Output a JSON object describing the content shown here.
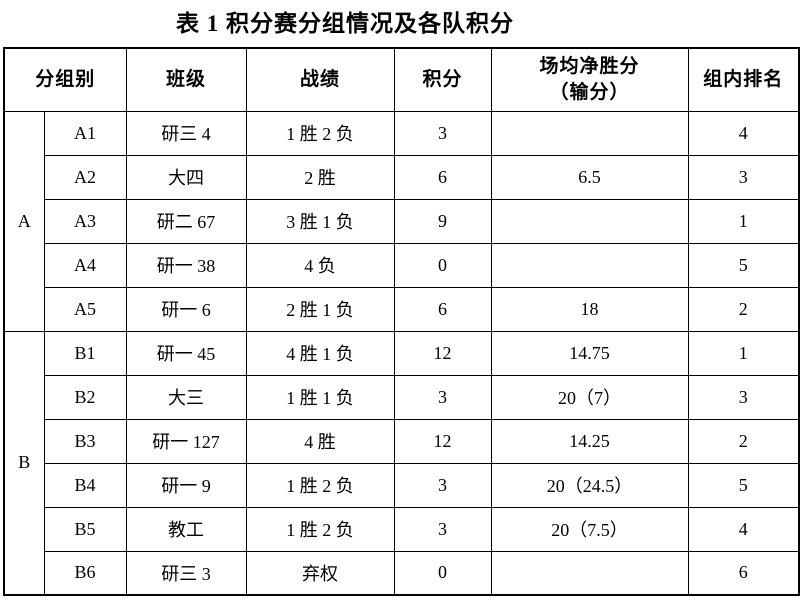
{
  "title": "表 1 积分赛分组情况及各队积分",
  "table": {
    "headers": {
      "group": "分组别",
      "class": "班级",
      "record": "战绩",
      "points": "积分",
      "margin_line1": "场均净胜分",
      "margin_line2": "（输分）",
      "rank": "组内排名"
    },
    "groups": [
      {
        "name": "A",
        "rows": [
          {
            "id": "A1",
            "class": "研三 4",
            "record": "1 胜 2 负",
            "points": "3",
            "margin": "",
            "rank": "4"
          },
          {
            "id": "A2",
            "class": "大四",
            "record": "2 胜",
            "points": "6",
            "margin": "6.5",
            "rank": "3"
          },
          {
            "id": "A3",
            "class": "研二 67",
            "record": "3 胜 1 负",
            "points": "9",
            "margin": "",
            "rank": "1"
          },
          {
            "id": "A4",
            "class": "研一 38",
            "record": "4 负",
            "points": "0",
            "margin": "",
            "rank": "5"
          },
          {
            "id": "A5",
            "class": "研一 6",
            "record": "2 胜 1 负",
            "points": "6",
            "margin": "18",
            "rank": "2"
          }
        ]
      },
      {
        "name": "B",
        "rows": [
          {
            "id": "B1",
            "class": "研一 45",
            "record": "4 胜 1 负",
            "points": "12",
            "margin": "14.75",
            "rank": "1"
          },
          {
            "id": "B2",
            "class": "大三",
            "record": "1 胜 1 负",
            "points": "3",
            "margin": "20（7）",
            "rank": "3"
          },
          {
            "id": "B3",
            "class": "研一 127",
            "record": "4 胜",
            "points": "12",
            "margin": "14.25",
            "rank": "2"
          },
          {
            "id": "B4",
            "class": "研一 9",
            "record": "1 胜 2 负",
            "points": "3",
            "margin": "20（24.5）",
            "rank": "5"
          },
          {
            "id": "B5",
            "class": "教工",
            "record": "1 胜 2 负",
            "points": "3",
            "margin": "20（7.5）",
            "rank": "4"
          },
          {
            "id": "B6",
            "class": "研三 3",
            "record": "弃权",
            "points": "0",
            "margin": "",
            "rank": "6"
          }
        ]
      }
    ]
  }
}
